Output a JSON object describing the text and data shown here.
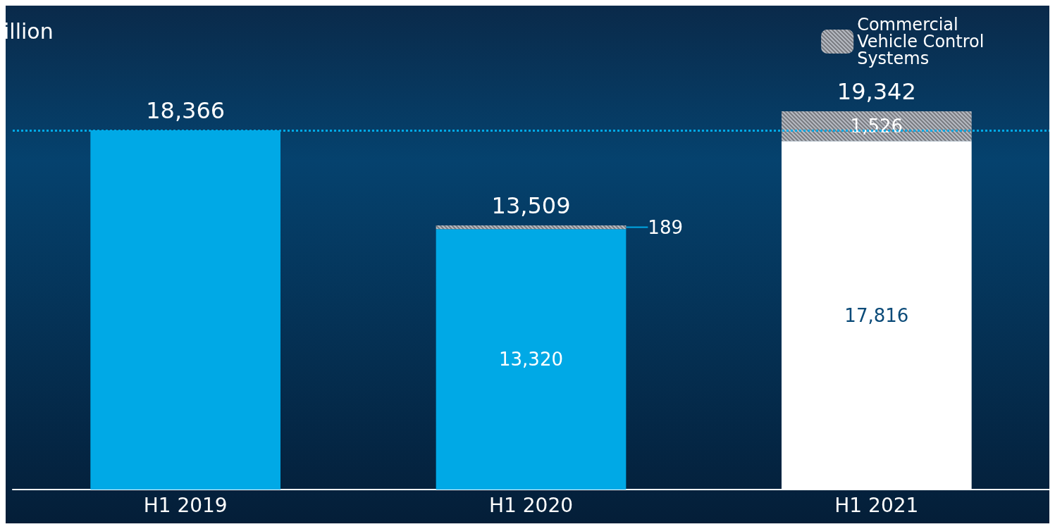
{
  "chart_data": {
    "type": "bar",
    "title": "illion",
    "categories": [
      "H1 2019",
      "H1 2020",
      "H1 2021"
    ],
    "stacked": true,
    "series": [
      {
        "colors": [
          "#00a9e6",
          "#00a9e6",
          "#ffffff"
        ],
        "values": [
          18366,
          13320,
          17816
        ],
        "value_labels": [
          null,
          "13,320",
          "17,816"
        ]
      },
      {
        "name": "Commercial Vehicle Control Systems",
        "color": "#b8bcc4",
        "values": [
          null,
          189,
          1526
        ],
        "value_labels": [
          null,
          "189",
          "1,526"
        ]
      }
    ],
    "totals": [
      "18,366",
      "13,509",
      "19,342"
    ],
    "ref_lines": [
      {
        "axis": "y",
        "value": 18366,
        "color": "#00a9e6",
        "line_style": "dotted"
      }
    ],
    "legend": "top right"
  }
}
